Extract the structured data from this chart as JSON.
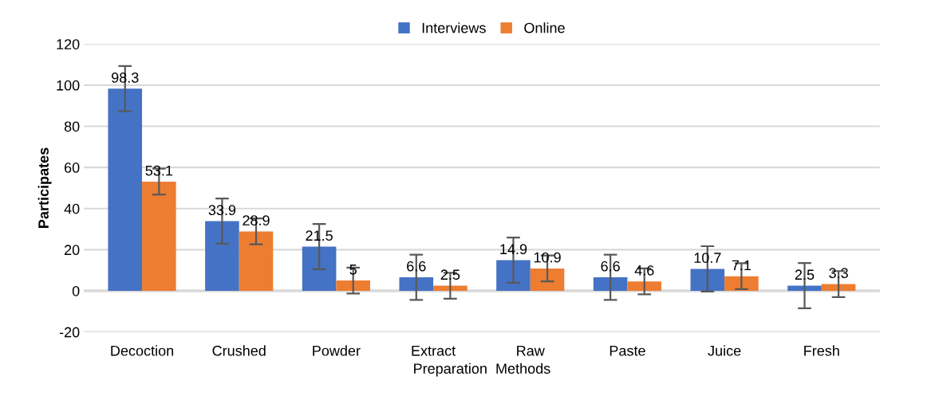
{
  "chart_data": {
    "type": "bar",
    "xlabel": "Preparation  Methods",
    "ylabel": "Participates",
    "categories": [
      "Decoction",
      "Crushed",
      "Powder",
      "Extract",
      "Raw",
      "Paste",
      "Juice",
      "Fresh"
    ],
    "series": [
      {
        "name": "Interviews",
        "color": "#4472c4",
        "values": [
          98.3,
          33.9,
          21.5,
          6.6,
          14.9,
          6.6,
          10.7,
          2.5
        ],
        "errors": [
          11,
          11,
          11,
          11,
          11,
          11,
          11,
          11
        ]
      },
      {
        "name": "Online",
        "color": "#ed7d31",
        "values": [
          53.1,
          28.9,
          5,
          2.5,
          10.9,
          4.6,
          7.1,
          3.3
        ],
        "errors": [
          6.3,
          6.3,
          6.3,
          6.3,
          6.3,
          6.3,
          6.3,
          6.3
        ]
      }
    ],
    "ylim": [
      -20,
      120
    ],
    "yticks": [
      -20,
      0,
      20,
      40,
      60,
      80,
      100,
      120
    ],
    "grid": "y",
    "legend": "top",
    "data_labels": true
  }
}
